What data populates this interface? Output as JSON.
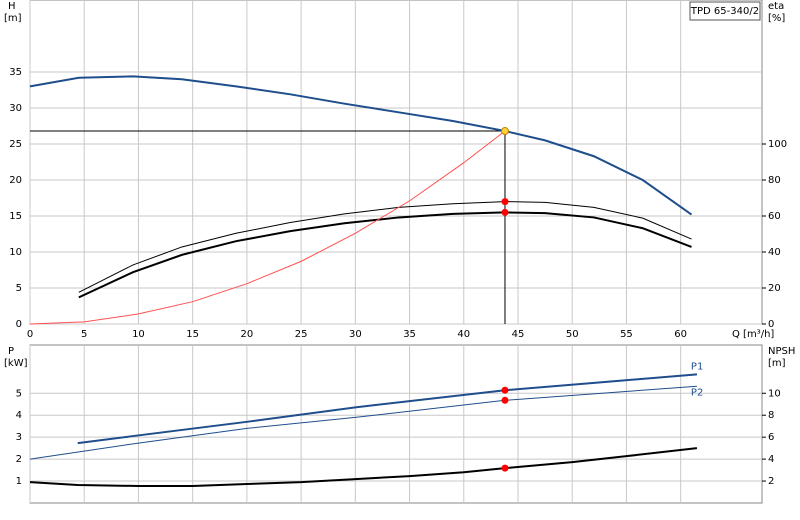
{
  "chart_data": [
    {
      "type": "line",
      "ylabel": "H",
      "ylabel_unit": "[m]",
      "y2label": "eta",
      "y2label_unit": "[%]",
      "xlabel": "Q [m³/h]",
      "annotation": "TPD 65-340/2",
      "xlim": [
        0,
        67.5
      ],
      "xticks": [
        0,
        5,
        10,
        15,
        20,
        25,
        30,
        35,
        40,
        45,
        50,
        55,
        60
      ],
      "show_xtick_labels": true,
      "ylim": [
        0,
        45
      ],
      "yticks": [
        0,
        5,
        10,
        15,
        20,
        25,
        30,
        35
      ],
      "y2lim": [
        0,
        180
      ],
      "y2ticks": [
        0,
        20,
        40,
        60,
        80,
        100
      ],
      "grid": true,
      "series": [
        {
          "color": "#1f4e8c",
          "width": 2,
          "axis": "y",
          "x": [
            0,
            4.5,
            9.5,
            14,
            19,
            24,
            29,
            34,
            39,
            43.8,
            47.5,
            52,
            56.5,
            61
          ],
          "values": [
            33,
            34.2,
            34.4,
            34,
            33,
            31.9,
            30.6,
            29.4,
            28.2,
            26.8,
            25.5,
            23.3,
            20,
            15.2
          ]
        },
        {
          "color": "#000000",
          "width": 1,
          "axis": "y2",
          "x": [
            4.5,
            9.5,
            14,
            19,
            24,
            29,
            34,
            39,
            43.8,
            47.5,
            52,
            56.5,
            61
          ],
          "values": [
            17.6,
            32.8,
            42.8,
            50.4,
            56.4,
            61.2,
            64.8,
            66.8,
            68,
            67.6,
            64.8,
            58.8,
            47.2
          ]
        },
        {
          "color": "#000000",
          "width": 2,
          "axis": "y2",
          "x": [
            4.5,
            9.5,
            14,
            19,
            24,
            29,
            34,
            39,
            43.8,
            47.5,
            52,
            56.5,
            61
          ],
          "values": [
            14.8,
            28.8,
            38.4,
            46,
            51.6,
            56,
            59.2,
            61.2,
            62,
            61.6,
            59.2,
            53.2,
            42.8
          ]
        },
        {
          "color": "#ff5050",
          "width": 1,
          "axis": "y",
          "x": [
            0,
            5,
            10,
            15,
            20,
            25,
            30,
            35,
            40,
            43.8
          ],
          "values": [
            0,
            0.3,
            1.4,
            3.1,
            5.6,
            8.7,
            12.6,
            17.1,
            22.4,
            26.8
          ]
        }
      ],
      "markers": [
        {
          "x": 43.8,
          "y": 26.8,
          "axis": "y",
          "color": "#ffd23c",
          "crosshair": true
        },
        {
          "x": 43.8,
          "y": 68,
          "axis": "y2",
          "color": "#ff0000"
        },
        {
          "x": 43.8,
          "y": 62,
          "axis": "y2",
          "color": "#ff0000"
        }
      ]
    },
    {
      "type": "line",
      "ylabel": "P",
      "ylabel_unit": "[kW]",
      "y2label": "NPSH",
      "y2label_unit": "[m]",
      "xlim": [
        0,
        67.5
      ],
      "xticks": [
        0,
        5,
        10,
        15,
        20,
        25,
        30,
        35,
        40,
        45,
        50,
        55,
        60
      ],
      "show_xtick_labels": false,
      "ylim": [
        0,
        7.2
      ],
      "yticks": [
        1,
        2,
        3,
        4,
        5
      ],
      "y2lim": [
        0,
        14.4
      ],
      "y2ticks": [
        2,
        4,
        6,
        8,
        10
      ],
      "grid": true,
      "series": [
        {
          "name": "P1",
          "color": "#1f4e8c",
          "width": 2,
          "axis": "y",
          "x": [
            4.4,
            9.5,
            20,
            30,
            43.8,
            61.5
          ],
          "values": [
            2.73,
            3.05,
            3.7,
            4.36,
            5.14,
            5.86
          ]
        },
        {
          "name": "P2",
          "color": "#1f4e8c",
          "width": 1,
          "axis": "y",
          "x": [
            0,
            10,
            20,
            30,
            43.8,
            61.5
          ],
          "values": [
            2.0,
            2.73,
            3.4,
            3.9,
            4.68,
            5.32
          ]
        },
        {
          "color": "#000000",
          "width": 2,
          "axis": "y2",
          "x": [
            0,
            4.4,
            10,
            15,
            20,
            25,
            30,
            35,
            40,
            43.8,
            50,
            55,
            61.5
          ],
          "values": [
            1.9,
            1.64,
            1.55,
            1.55,
            1.73,
            1.9,
            2.18,
            2.45,
            2.8,
            3.18,
            3.73,
            4.27,
            5.0
          ]
        }
      ],
      "markers": [
        {
          "x": 43.8,
          "y": 5.14,
          "axis": "y",
          "color": "#ff0000"
        },
        {
          "x": 43.8,
          "y": 4.68,
          "axis": "y",
          "color": "#ff0000"
        },
        {
          "x": 43.8,
          "y": 3.18,
          "axis": "y2",
          "color": "#ff0000"
        }
      ]
    }
  ]
}
